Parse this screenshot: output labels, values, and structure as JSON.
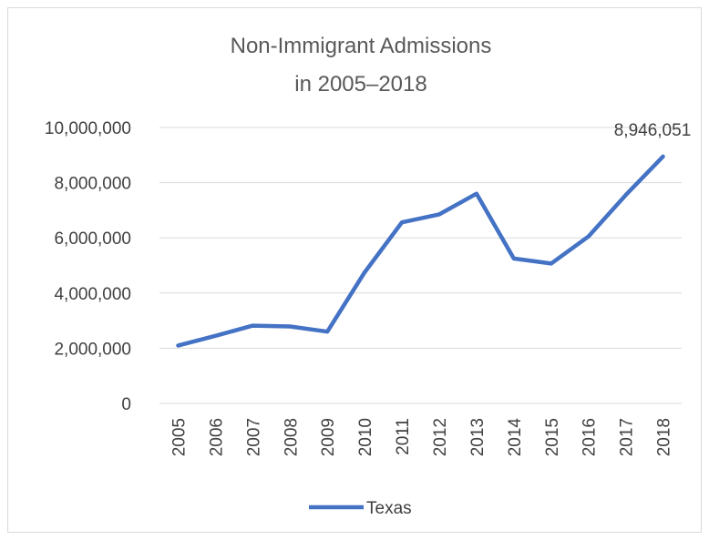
{
  "chart_data": {
    "type": "line",
    "title_lines": [
      "Non-Immigrant Admissions",
      "in 2005–2018"
    ],
    "categories": [
      "2005",
      "2006",
      "2007",
      "2008",
      "2009",
      "2010",
      "2011",
      "2012",
      "2013",
      "2014",
      "2015",
      "2016",
      "2017",
      "2018"
    ],
    "series": [
      {
        "name": "Texas",
        "color": "#4472c4",
        "values": [
          2100000,
          2450000,
          2820000,
          2790000,
          2600000,
          4750000,
          6560000,
          6850000,
          7600000,
          5250000,
          5070000,
          6050000,
          7550000,
          8946051
        ]
      }
    ],
    "ylim": [
      0,
      10000000
    ],
    "yticks": [
      0,
      2000000,
      4000000,
      6000000,
      8000000,
      10000000
    ],
    "ytick_labels": [
      "0",
      "2,000,000",
      "4,000,000",
      "6,000,000",
      "8,000,000",
      "10,000,000"
    ],
    "data_labels": [
      {
        "category": "2018",
        "text": "8,946,051"
      }
    ],
    "grid": true,
    "legend_position": "bottom"
  }
}
